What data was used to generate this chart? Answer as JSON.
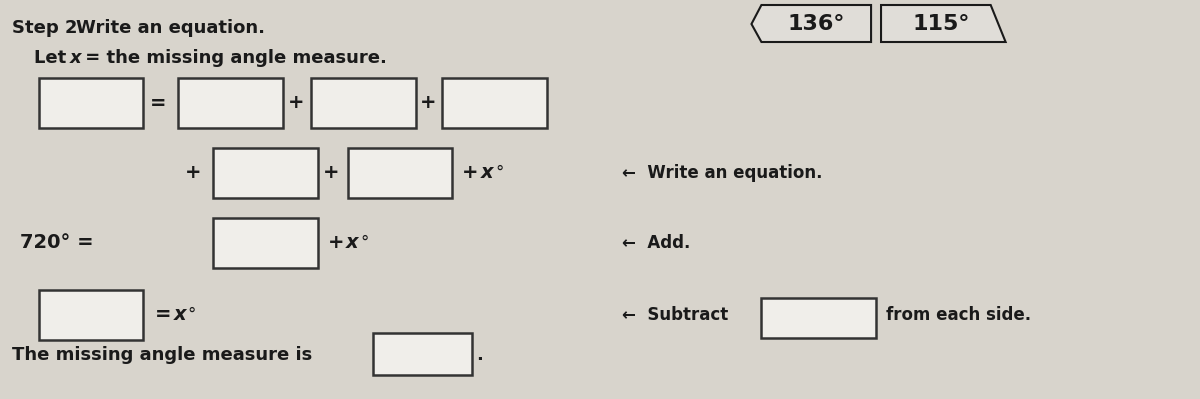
{
  "bg_color": "#d8d4cc",
  "page_color": "#e8e6e0",
  "font_color": "#1a1a1a",
  "box_color": "#f0eeea",
  "box_edge_color": "#333333",
  "angle1": "136°",
  "angle2": "115°",
  "step2_text": "Step 2",
  "step2_rest": "  Write an equation.",
  "letx_bold": "Let ",
  "letx_italic": "x",
  "letx_rest": " = the missing angle measure.",
  "row3_label": "720° =",
  "row3_op": "+ x°",
  "row4_op": "= x°",
  "arrow_write": "←  Write an equation.",
  "arrow_add": "←  Add.",
  "arrow_subtract": "←  Subtract",
  "subtract_box_after": "from each side.",
  "bottom_text": "The missing angle measure is",
  "period": "."
}
